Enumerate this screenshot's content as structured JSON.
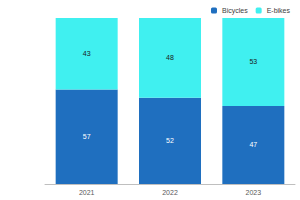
{
  "chart_data": {
    "type": "bar",
    "stacked": true,
    "categories": [
      "2021",
      "2022",
      "2023"
    ],
    "series": [
      {
        "name": "Bicycles",
        "color": "#1f6fbf",
        "values": [
          57,
          52,
          47
        ]
      },
      {
        "name": "E-bikes",
        "color": "#40f0f0",
        "values": [
          43,
          48,
          53
        ]
      }
    ],
    "ylim": [
      0,
      100
    ],
    "yticks": [
      0,
      100
    ],
    "grid": false,
    "legend": "top-right",
    "data_labels": true,
    "tick_labels": "x"
  }
}
